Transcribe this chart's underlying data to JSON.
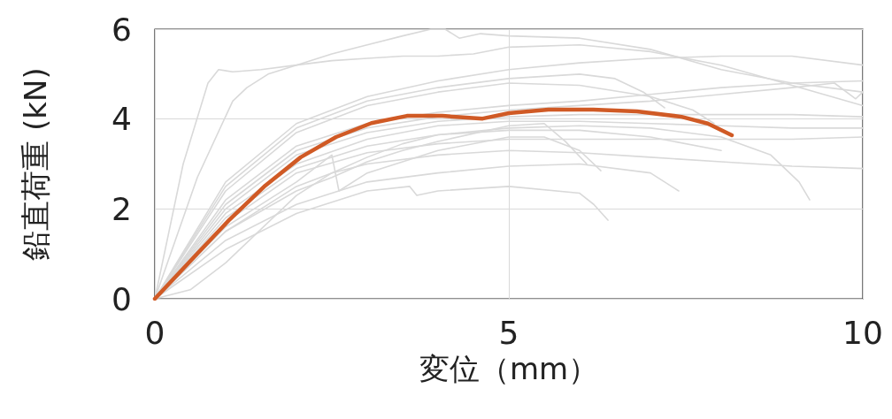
{
  "chart_data": {
    "type": "line",
    "xlabel": "変位（mm）",
    "ylabel": "鉛直荷重 (kN)",
    "xlim": [
      0,
      10
    ],
    "xticks": [
      0,
      5,
      10
    ],
    "ylim": [
      0,
      6
    ],
    "yticks": [
      0,
      2,
      4,
      6
    ],
    "grid": true,
    "marker": "none",
    "line_style": "solid",
    "series": [
      {
        "color": "#d9d9d9",
        "x": [
          0,
          0.4,
          0.75,
          0.9,
          1.1,
          1.5,
          2,
          2.5,
          3,
          3.5,
          3.9,
          4.1,
          4.3,
          4.6,
          5,
          6,
          7,
          8,
          9,
          10
        ],
        "values": [
          0,
          3.0,
          4.8,
          5.1,
          5.05,
          5.1,
          5.2,
          5.45,
          5.65,
          5.85,
          6.0,
          6.0,
          5.8,
          5.9,
          5.85,
          5.8,
          5.55,
          5.1,
          4.8,
          4.6
        ]
      },
      {
        "color": "#d9d9d9",
        "x": [
          0,
          0.6,
          1.1,
          1.3,
          1.6,
          2,
          2.5,
          3,
          3.5,
          4,
          4.5,
          5,
          6,
          7,
          8,
          9,
          10
        ],
        "values": [
          0,
          2.7,
          4.4,
          4.7,
          5.0,
          5.2,
          5.3,
          5.35,
          5.4,
          5.4,
          5.45,
          5.6,
          5.65,
          5.5,
          5.2,
          4.75,
          4.3
        ]
      },
      {
        "color": "#d9d9d9",
        "x": [
          0,
          1,
          2,
          3,
          4,
          5,
          6,
          7,
          8,
          9,
          10
        ],
        "values": [
          0,
          2.6,
          3.9,
          4.5,
          4.85,
          5.1,
          5.25,
          5.35,
          5.4,
          5.4,
          5.2
        ]
      },
      {
        "color": "#d9d9d9",
        "x": [
          0,
          1,
          2,
          3,
          4,
          5,
          6,
          6.5,
          6.9,
          7.2
        ],
        "values": [
          0,
          2.5,
          3.8,
          4.4,
          4.7,
          4.9,
          5.0,
          4.9,
          4.6,
          4.25
        ]
      },
      {
        "color": "#d9d9d9",
        "x": [
          0,
          1,
          2,
          3,
          4,
          5,
          6,
          7,
          7.6,
          7.9
        ],
        "values": [
          0,
          2.4,
          3.7,
          4.3,
          4.6,
          4.8,
          4.75,
          4.5,
          4.2,
          3.9
        ]
      },
      {
        "color": "#d9d9d9",
        "x": [
          0,
          1,
          2,
          3,
          4,
          5,
          6,
          7,
          8,
          9,
          10
        ],
        "values": [
          0,
          2.2,
          3.4,
          3.9,
          4.15,
          4.3,
          4.4,
          4.55,
          4.7,
          4.8,
          4.85
        ]
      },
      {
        "color": "#d9d9d9",
        "x": [
          0,
          1,
          2,
          3,
          4,
          5,
          6,
          7,
          8,
          9,
          9.6,
          9.9,
          10
        ],
        "values": [
          0,
          2.1,
          3.3,
          3.8,
          4.05,
          4.2,
          4.3,
          4.4,
          4.55,
          4.7,
          4.8,
          4.45,
          4.6
        ]
      },
      {
        "color": "#d9d9d9",
        "x": [
          0,
          1,
          2,
          3,
          4,
          5,
          6,
          7,
          8,
          9,
          10
        ],
        "values": [
          0,
          2.0,
          3.2,
          3.7,
          3.95,
          4.05,
          4.1,
          4.1,
          4.1,
          4.1,
          4.05
        ]
      },
      {
        "color": "#d9d9d9",
        "x": [
          0,
          1,
          2,
          3,
          4,
          5,
          6,
          7,
          8,
          9,
          10
        ],
        "values": [
          0,
          1.9,
          3.0,
          3.55,
          3.85,
          3.95,
          3.95,
          3.9,
          3.85,
          3.8,
          3.8
        ]
      },
      {
        "color": "#d9d9d9",
        "x": [
          0,
          1,
          2,
          3,
          4,
          5,
          6,
          7,
          8,
          8.7,
          9.1,
          9.25
        ],
        "values": [
          0,
          1.8,
          2.9,
          3.4,
          3.65,
          3.8,
          3.85,
          3.8,
          3.6,
          3.2,
          2.6,
          2.2
        ]
      },
      {
        "color": "#d9d9d9",
        "x": [
          0,
          1,
          2,
          3,
          4,
          5,
          6,
          7,
          8,
          9,
          10
        ],
        "values": [
          0,
          1.7,
          2.8,
          3.25,
          3.45,
          3.55,
          3.55,
          3.55,
          3.55,
          3.55,
          3.6
        ]
      },
      {
        "color": "#d9d9d9",
        "x": [
          0,
          1,
          2,
          2.5,
          3,
          4,
          5,
          6,
          7,
          8,
          9,
          10
        ],
        "values": [
          0,
          1.5,
          2.5,
          2.8,
          3.0,
          3.2,
          3.3,
          3.25,
          3.15,
          3.05,
          2.95,
          2.9
        ]
      },
      {
        "color": "#d9d9d9",
        "x": [
          0,
          1,
          2,
          2.5,
          2.6,
          3,
          4,
          5,
          5.5,
          6,
          6.3
        ],
        "values": [
          0,
          1.6,
          2.6,
          3.2,
          2.4,
          2.8,
          3.3,
          3.6,
          3.6,
          3.3,
          2.85
        ]
      },
      {
        "color": "#d9d9d9",
        "x": [
          0,
          1,
          2,
          2.5,
          3,
          3.5,
          4,
          5,
          5.5,
          5.8,
          6.1
        ],
        "values": [
          0,
          1.5,
          2.4,
          2.7,
          3.05,
          3.3,
          3.5,
          3.85,
          3.9,
          3.5,
          3.0
        ]
      },
      {
        "color": "#d9d9d9",
        "x": [
          0,
          1,
          2,
          3,
          4,
          5,
          6,
          7,
          7.4
        ],
        "values": [
          0,
          1.3,
          2.1,
          2.6,
          2.8,
          2.95,
          3.0,
          2.8,
          2.4
        ]
      },
      {
        "color": "#d9d9d9",
        "x": [
          0,
          1,
          2,
          3,
          3.6,
          3.7,
          4,
          5,
          6,
          6.2,
          6.4
        ],
        "values": [
          0,
          1.1,
          1.9,
          2.4,
          2.5,
          2.3,
          2.4,
          2.5,
          2.35,
          2.1,
          1.75
        ]
      },
      {
        "color": "#d9d9d9",
        "x": [
          0,
          0.5,
          1,
          2,
          2.5,
          3,
          3.5,
          4,
          5,
          6,
          7,
          8
        ],
        "values": [
          0,
          0.2,
          0.8,
          2.3,
          2.8,
          3.15,
          3.45,
          3.65,
          3.75,
          3.75,
          3.6,
          3.3
        ]
      },
      {
        "color": "#d05a25",
        "x": [
          0,
          0.56,
          1.06,
          1.56,
          2.06,
          2.56,
          3.06,
          3.56,
          4.06,
          4.63,
          5.0,
          5.56,
          6.19,
          6.81,
          7.44,
          7.81,
          8.15
        ],
        "values": [
          0,
          0.94,
          1.77,
          2.52,
          3.15,
          3.6,
          3.91,
          4.07,
          4.07,
          4.01,
          4.13,
          4.21,
          4.21,
          4.17,
          4.05,
          3.9,
          3.64
        ]
      }
    ]
  }
}
